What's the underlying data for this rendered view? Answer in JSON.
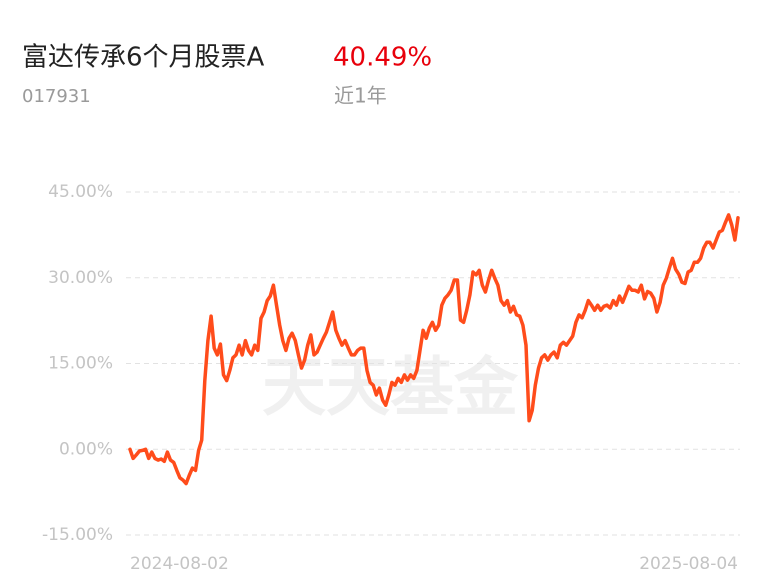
{
  "title": "富达传承6个月股票A",
  "return": "40.49%",
  "code": "017931",
  "period": "近1年",
  "watermark": "天天基金",
  "chart_data": {
    "type": "line",
    "categories": [
      "2024-08-02",
      null,
      null,
      null,
      null,
      null,
      null,
      null,
      null,
      null,
      null,
      null,
      null,
      null,
      null,
      null,
      null,
      null,
      null,
      null,
      null,
      null,
      null,
      null,
      null,
      null,
      null,
      null,
      null,
      null,
      null,
      null,
      null,
      null,
      null,
      null,
      null,
      null,
      null,
      null,
      null,
      null,
      null,
      null,
      null,
      null,
      null,
      null,
      null,
      null,
      null,
      null,
      null,
      null,
      null,
      null,
      null,
      null,
      null,
      null,
      null,
      null,
      null,
      null,
      null,
      null,
      null,
      null,
      null,
      null,
      null,
      null,
      null,
      null,
      null,
      null,
      null,
      null,
      null,
      null,
      null,
      null,
      null,
      null,
      null,
      null,
      null,
      null,
      null,
      null,
      null,
      null,
      null,
      null,
      null,
      null,
      null,
      null,
      null,
      null,
      null,
      null,
      null,
      null,
      null,
      null,
      null,
      null,
      null,
      null,
      null,
      null,
      null,
      null,
      null,
      null,
      null,
      null,
      null,
      null,
      null,
      null,
      null,
      null,
      null,
      null,
      null,
      null,
      null,
      null,
      null,
      null,
      null,
      null,
      null,
      null,
      null,
      null,
      null,
      null,
      null,
      null,
      null,
      null,
      null,
      null,
      null,
      null,
      null,
      null,
      null,
      null,
      null,
      null,
      null,
      null,
      null,
      null,
      null,
      null,
      null,
      null,
      null,
      null,
      null,
      null,
      null,
      null,
      null,
      null,
      null,
      null,
      null,
      null,
      null,
      null,
      null,
      null,
      null,
      null,
      null,
      null,
      null,
      null,
      null,
      null,
      null,
      null,
      null,
      null,
      null,
      null,
      null,
      null,
      null,
      "2025-08-04"
    ],
    "series": [
      {
        "color": "#ff4c1b",
        "values": [
          0,
          -1.6,
          -1,
          -0.3,
          -0.2,
          0,
          -1.6,
          -0.5,
          -1.6,
          -1.9,
          -1.7,
          -2.1,
          -0.5,
          -1.9,
          -2.3,
          -3.7,
          -5,
          -5.4,
          -6,
          -4.6,
          -3.3,
          -3.7,
          -0.2,
          1.6,
          12,
          19,
          23.3,
          17.7,
          16.5,
          18.4,
          13,
          12,
          13.8,
          16,
          16.5,
          18.2,
          16.5,
          19,
          17.3,
          16.5,
          18.2,
          17.3,
          22.9,
          24,
          26,
          26.8,
          28.7,
          25.2,
          21.7,
          19,
          17.3,
          19.4,
          20.3,
          19,
          16.5,
          14.2,
          15.6,
          18.2,
          20,
          16.5,
          17,
          18.2,
          19.4,
          20.5,
          22.2,
          24,
          20.8,
          19.4,
          18.2,
          19,
          17.7,
          16.5,
          16.5,
          17.3,
          17.7,
          17.7,
          13.8,
          11.7,
          11.2,
          9.5,
          10.7,
          8.6,
          7.7,
          9.5,
          11.7,
          11.2,
          12.4,
          11.7,
          13,
          12.1,
          13,
          12.4,
          13.8,
          17.3,
          20.8,
          19.4,
          21.2,
          22.2,
          20.8,
          21.7,
          25.2,
          26.4,
          27,
          27.8,
          29.6,
          29.6,
          22.6,
          22.2,
          24.3,
          27,
          31,
          30.5,
          31.3,
          28.7,
          27.5,
          29.6,
          31.3,
          29.9,
          28.7,
          26,
          25.2,
          26,
          24,
          25,
          23.5,
          23.3,
          21.7,
          18.2,
          5,
          6.8,
          11.2,
          14.2,
          16,
          16.5,
          15.6,
          16.5,
          17,
          16,
          18.2,
          18.7,
          18.2,
          19,
          19.8,
          22.2,
          23.5,
          23,
          24.3,
          26,
          25.2,
          24.3,
          25.2,
          24.3,
          25,
          25.2,
          24.7,
          26,
          25.2,
          26.8,
          25.7,
          27.1,
          28.5,
          27.8,
          27.8,
          27.5,
          28.7,
          26.3,
          27.6,
          27.3,
          26.4,
          24,
          25.7,
          28.7,
          29.9,
          31.7,
          33.4,
          31.5,
          30.6,
          29.2,
          29,
          31,
          31.3,
          32.7,
          32.7,
          33.4,
          35.2,
          36.2,
          36.2,
          35.2,
          36.6,
          38,
          38.3,
          39.7,
          41,
          39.2,
          36.6,
          40.49
        ]
      }
    ],
    "ylim": [
      -15,
      45
    ],
    "yticks": [
      {
        "value": -15,
        "label": "-15.00%"
      },
      {
        "value": 0,
        "label": "0.00%"
      },
      {
        "value": 15,
        "label": "15.00%"
      },
      {
        "value": 30,
        "label": "30.00%"
      },
      {
        "value": 45,
        "label": "45.00%"
      }
    ],
    "grid": true
  }
}
